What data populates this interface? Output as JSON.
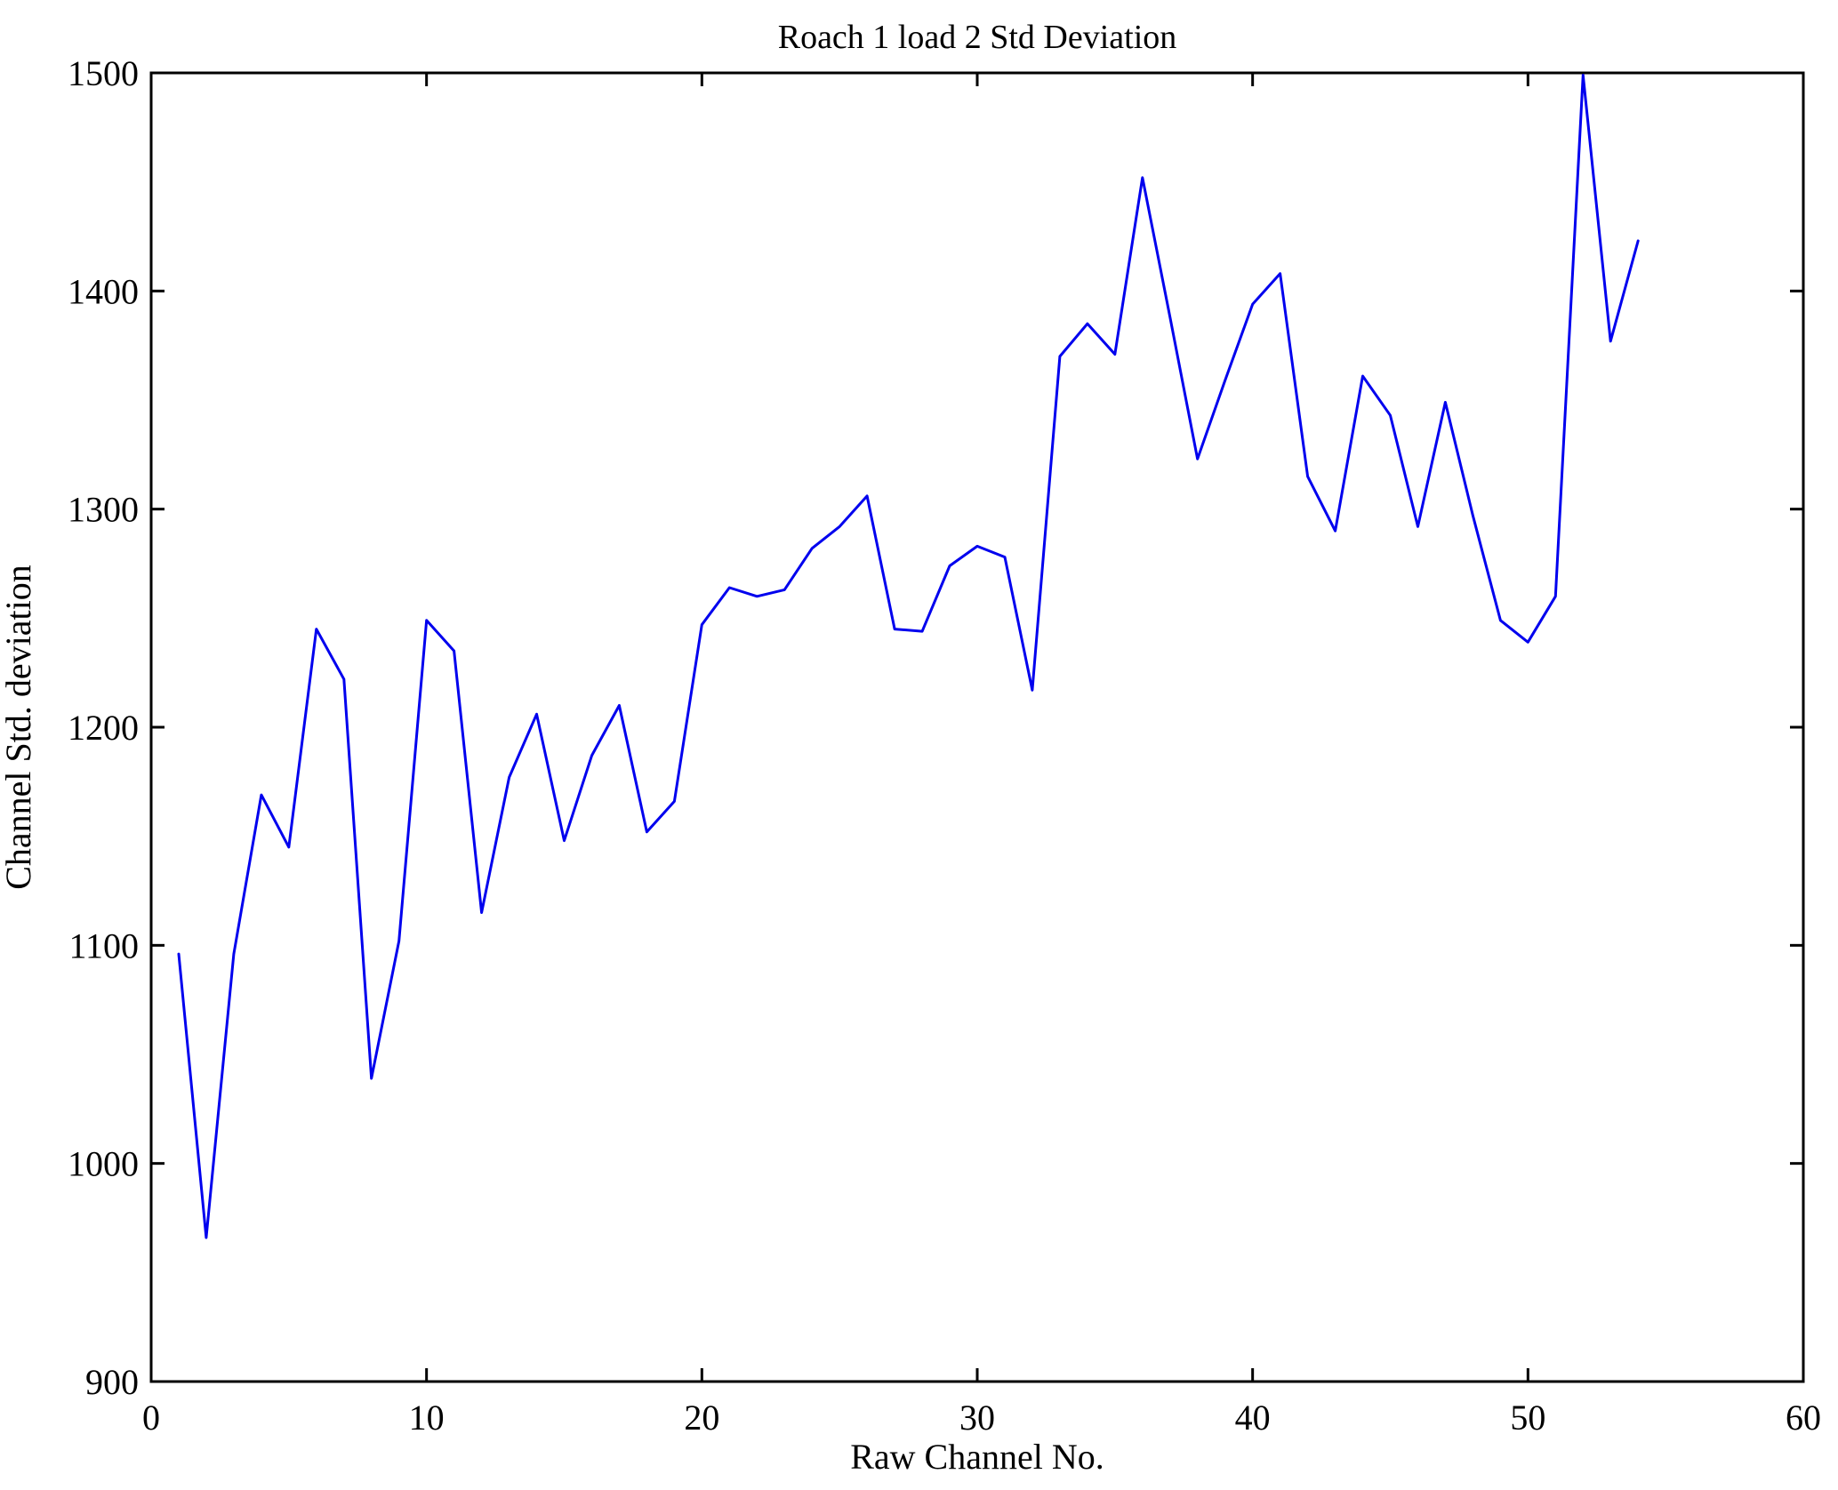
{
  "page": {
    "background": "#ffffff"
  },
  "chart_data": {
    "type": "line",
    "title": "Roach 1 load 2 Std Deviation",
    "xlabel": "Raw Channel No.",
    "ylabel": "Channel Std. deviation",
    "x": [
      1,
      2,
      3,
      4,
      5,
      6,
      7,
      8,
      9,
      10,
      11,
      12,
      13,
      14,
      15,
      16,
      17,
      18,
      19,
      20,
      21,
      22,
      23,
      24,
      25,
      26,
      27,
      28,
      29,
      30,
      31,
      32,
      33,
      34,
      35,
      36,
      37,
      38,
      39,
      40,
      41,
      42,
      43,
      44,
      45,
      46,
      47,
      48,
      49,
      50,
      51,
      52,
      53,
      54
    ],
    "series": [
      {
        "name": "Channel Std deviation",
        "values": [
          1096,
          966,
          1096,
          1169,
          1145,
          1245,
          1222,
          1039,
          1102,
          1249,
          1235,
          1115,
          1177,
          1206,
          1148,
          1187,
          1210,
          1152,
          1166,
          1247,
          1264,
          1260,
          1263,
          1282,
          1292,
          1306,
          1245,
          1244,
          1274,
          1283,
          1278,
          1217,
          1370,
          1385,
          1371,
          1452,
          1388,
          1323,
          1359,
          1394,
          1408,
          1315,
          1290,
          1361,
          1343,
          1292,
          1349,
          1297,
          1249,
          1239,
          1260,
          1499,
          1377,
          1423
        ]
      }
    ],
    "xlim": [
      0,
      60
    ],
    "ylim": [
      900,
      1500
    ],
    "xticks": [
      0,
      10,
      20,
      30,
      40,
      50,
      60
    ],
    "yticks": [
      900,
      1000,
      1100,
      1200,
      1300,
      1400,
      1500
    ],
    "grid": false,
    "legend_position": "none",
    "line_color": "#0000EE",
    "axis_color": "#000000"
  }
}
